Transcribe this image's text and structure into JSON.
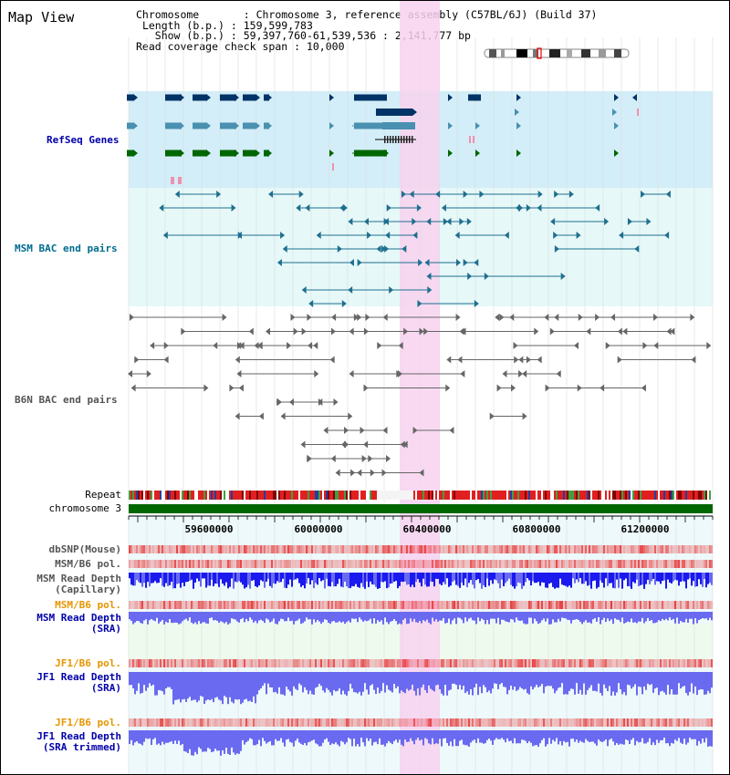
{
  "title": "Map View",
  "info": {
    "chromosome_key": "Chromosome",
    "chromosome_val": "Chromosome 3, reference assembly (C57BL/6J) (Build 37)",
    "length_key": "Length (b.p.)",
    "length_val": "159,599,783",
    "show_key": "Show (b.p.)",
    "show_val": "59,397,760-61,539,536 : 2,141,777 bp",
    "span_key": "Read coverage check span",
    "span_val": "10,000"
  },
  "tracks": {
    "refseq": "RefSeq Genes",
    "msm_bac": "MSM BAC end pairs",
    "b6n_bac": "B6N BAC end pairs",
    "repeat": "Repeat",
    "chrom": "chromosome 3",
    "dbsnp": "dbSNP(Mouse)",
    "msm_pol1": "MSM/B6 pol.",
    "msm_depth_cap_1": "MSM Read Depth",
    "msm_depth_cap_2": "(Capillary)",
    "msm_pol2": "MSM/B6 pol.",
    "msm_depth_sra_1": "MSM Read Depth",
    "msm_depth_sra_2": "(SRA)",
    "jf1_pol1": "JF1/B6 pol.",
    "jf1_depth_sra_1": "JF1 Read Depth",
    "jf1_depth_sra_2": "(SRA)",
    "jf1_pol2": "JF1/B6 pol.",
    "jf1_depth_trim_1": "JF1 Read Depth",
    "jf1_depth_trim_2": "(SRA trimmed)"
  },
  "axis": {
    "ticks": [
      "59600000",
      "60000000",
      "60400000",
      "60800000",
      "61200000"
    ]
  },
  "colors": {
    "refseq_bg": "#d3eef8",
    "msm_bac_bg": "#e6f8f8",
    "highlight": "#f8d2f0",
    "label_blue": "#0000aa",
    "label_teal": "#006b8f",
    "label_orange": "#e69500",
    "chrom_green": "#006600"
  }
}
